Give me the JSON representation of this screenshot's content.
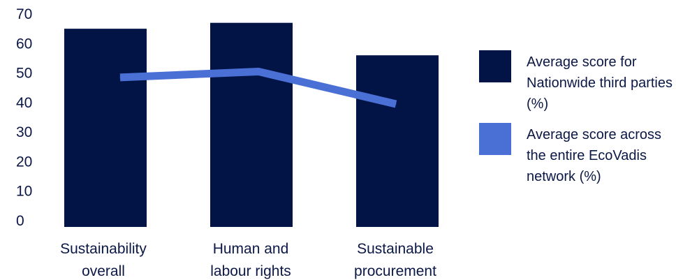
{
  "chart_data": {
    "type": "bar",
    "categories": [
      [
        "Sustainability",
        "overall"
      ],
      [
        "Human and",
        "labour rights"
      ],
      [
        "Sustainable",
        "procurement"
      ]
    ],
    "series": [
      {
        "name": "Average score for Nationwide third parties (%)",
        "type": "bar",
        "color": "#011445",
        "values": [
          65,
          67,
          56
        ]
      },
      {
        "name": "Average score across the entire EcoVadis network (%)",
        "type": "line",
        "color": "#4a70d6",
        "values": [
          48.5,
          50.5,
          39.5
        ]
      }
    ],
    "ylim": [
      0,
      70
    ],
    "yticks": [
      "0",
      "10",
      "20",
      "30",
      "40",
      "50",
      "60",
      "70"
    ],
    "grid": false,
    "legend_position": "right"
  }
}
